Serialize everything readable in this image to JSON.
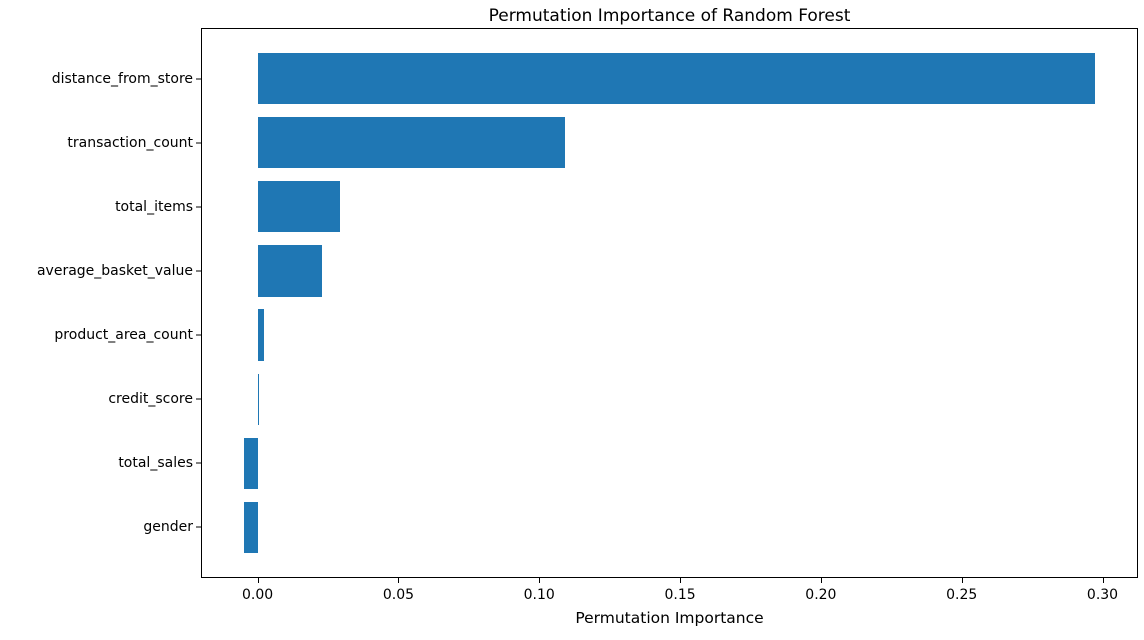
{
  "chart_data": {
    "type": "bar",
    "orientation": "horizontal",
    "title": "Permutation Importance of Random Forest",
    "xlabel": "Permutation Importance",
    "ylabel": "",
    "categories": [
      "distance_from_store",
      "transaction_count",
      "total_items",
      "average_basket_value",
      "product_area_count",
      "credit_score",
      "total_sales",
      "gender"
    ],
    "values": [
      0.2975,
      0.109,
      0.0294,
      0.0229,
      0.0022,
      0.0005,
      -0.005,
      -0.005
    ],
    "xticks": [
      0.0,
      0.05,
      0.1,
      0.15,
      0.2,
      0.25,
      0.3
    ],
    "xtick_labels": [
      "0.00",
      "0.05",
      "0.10",
      "0.15",
      "0.20",
      "0.25",
      "0.30"
    ],
    "xlim": [
      -0.0201,
      0.3126
    ],
    "bar_color": "#1f77b4",
    "background": "#ffffff",
    "grid": false,
    "legend": null
  }
}
